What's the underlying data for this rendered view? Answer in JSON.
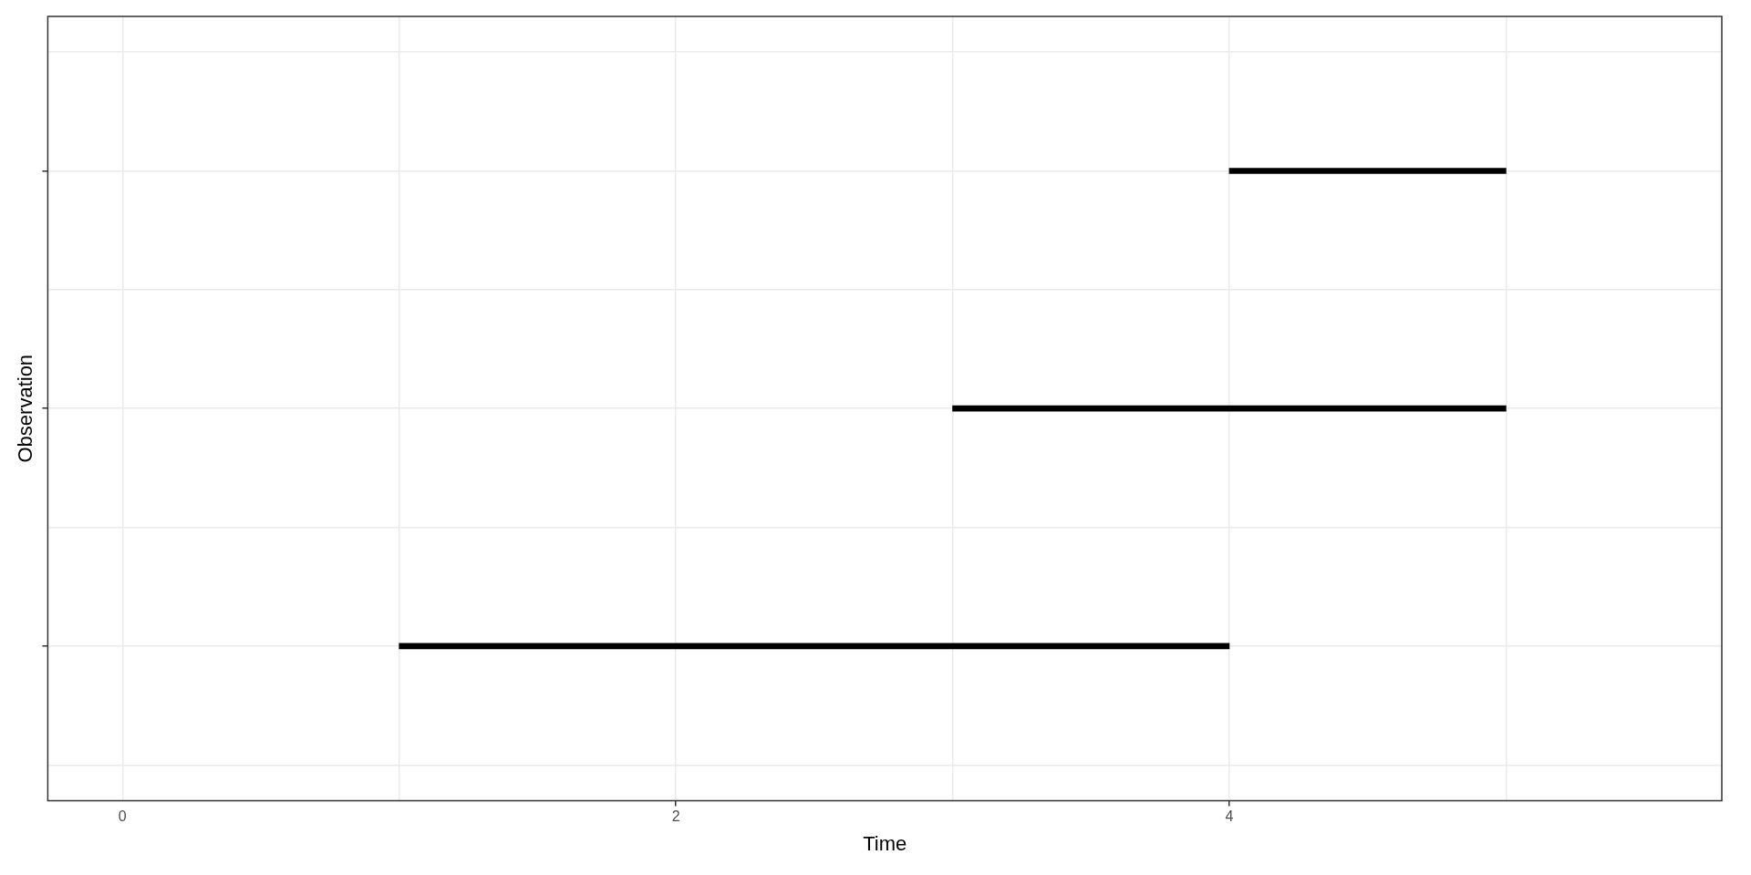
{
  "chart_data": {
    "type": "bar",
    "orientation": "horizontal",
    "xlabel": "Time",
    "ylabel": "Observation",
    "categories": [
      null,
      null,
      null
    ],
    "base": [
      4,
      3,
      1
    ],
    "values": [
      1,
      2,
      3
    ],
    "color": "#000000",
    "xlim": [
      -0.27,
      5.78
    ],
    "xticks": [
      0,
      {
        "value": 1,
        "label": null
      },
      2,
      {
        "value": 3,
        "label": null
      },
      4,
      {
        "value": 5,
        "label": null
      }
    ],
    "tick_labels": "x",
    "grid": true,
    "legend": false
  }
}
